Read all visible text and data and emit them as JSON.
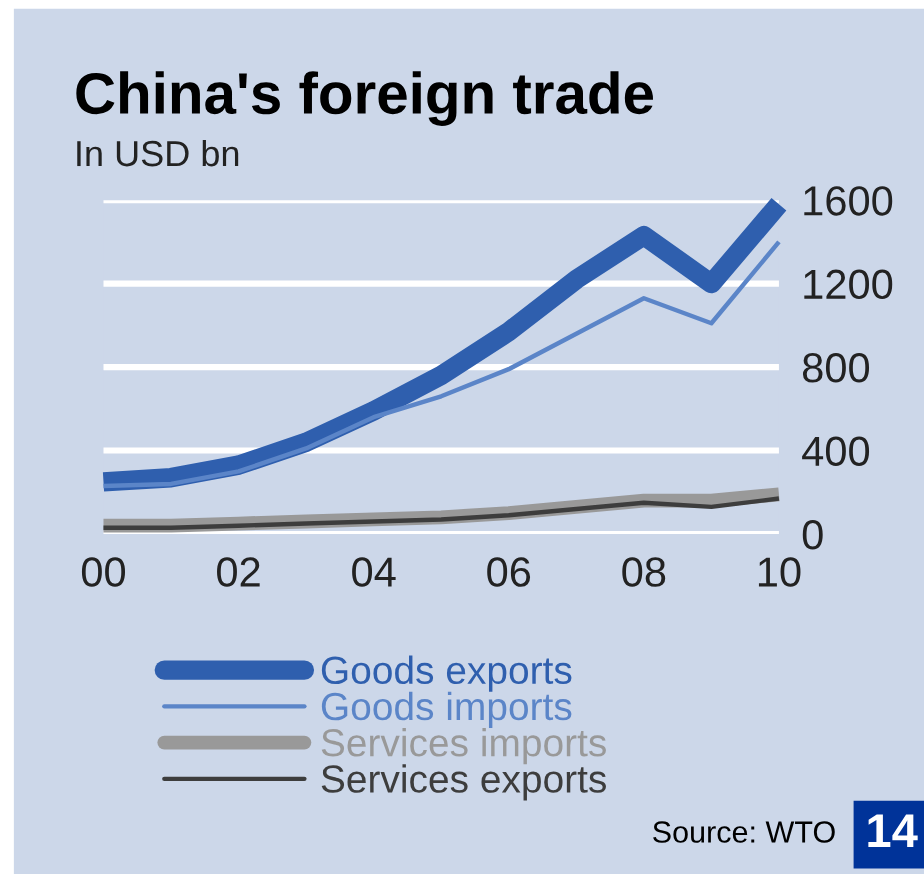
{
  "chart_data": {
    "type": "line",
    "title": "China's foreign trade",
    "subtitle": "In USD bn",
    "x": [
      2000,
      2001,
      2002,
      2003,
      2004,
      2005,
      2006,
      2007,
      2008,
      2009,
      2010
    ],
    "series": [
      {
        "name": "Goods exports",
        "color": "#2f5fae",
        "values": [
          250,
          270,
          330,
          440,
          590,
          760,
          970,
          1220,
          1430,
          1200,
          1580
        ]
      },
      {
        "name": "Goods imports",
        "color": "#5b85c8",
        "values": [
          230,
          240,
          300,
          410,
          560,
          660,
          790,
          960,
          1130,
          1010,
          1400
        ]
      },
      {
        "name": "Services imports",
        "color": "#999999",
        "values": [
          40,
          40,
          50,
          60,
          70,
          80,
          100,
          130,
          160,
          160,
          190
        ]
      },
      {
        "name": "Services exports",
        "color": "#3d3d3d",
        "values": [
          30,
          30,
          40,
          50,
          60,
          70,
          90,
          120,
          150,
          130,
          170
        ]
      }
    ],
    "xlim": [
      2000,
      2010
    ],
    "ylim": [
      0,
      1600
    ],
    "xticks": [
      {
        "value": 2000,
        "label": "00"
      },
      {
        "value": 2002,
        "label": "02"
      },
      {
        "value": 2004,
        "label": "04"
      },
      {
        "value": 2006,
        "label": "06"
      },
      {
        "value": 2008,
        "label": "08"
      },
      {
        "value": 2010,
        "label": "10"
      }
    ],
    "yticks": [
      0,
      400,
      800,
      1200,
      1600
    ],
    "grid": "y",
    "legend": "bottom",
    "marker": "none",
    "line_style": "solid",
    "annotations": [
      "Source: WTO",
      "14"
    ]
  }
}
